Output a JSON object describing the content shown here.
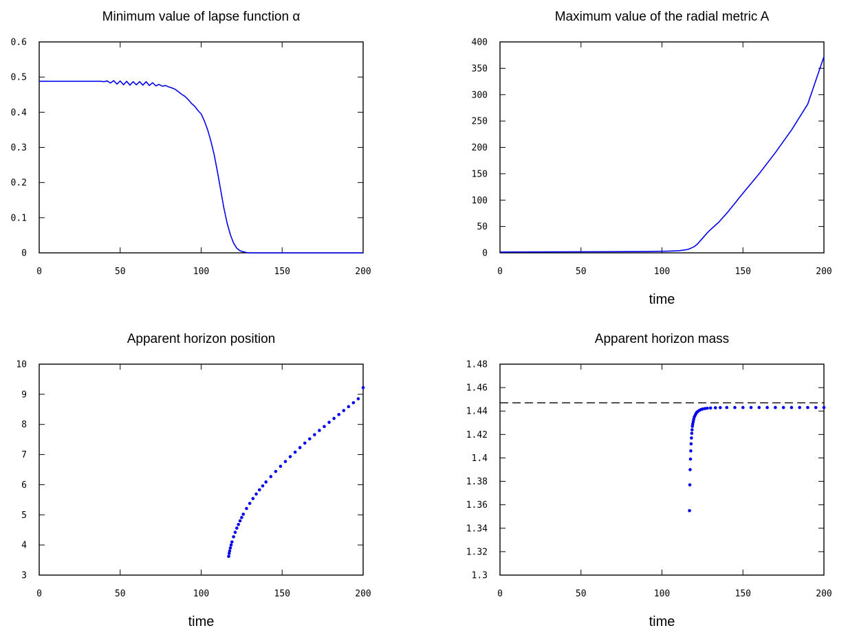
{
  "chart_data": [
    {
      "type": "line",
      "title": "Minimum value of lapse function α",
      "xlabel": "",
      "ylabel": "",
      "xlim": [
        0,
        200
      ],
      "ylim": [
        0,
        0.6
      ],
      "xticks": [
        "0",
        "50",
        "100",
        "150",
        "200"
      ],
      "yticks": [
        "0",
        "0.1",
        "0.2",
        "0.3",
        "0.4",
        "0.5",
        "0.6"
      ],
      "grid": false,
      "series": [
        {
          "color": "#0000ee",
          "x": [
            0,
            20,
            38,
            40,
            42,
            44,
            46,
            48,
            50,
            52,
            54,
            56,
            58,
            60,
            62,
            64,
            66,
            68,
            70,
            72,
            74,
            76,
            78,
            80,
            82,
            84,
            86,
            88,
            90,
            92,
            94,
            96,
            98,
            100,
            102,
            104,
            106,
            108,
            110,
            112,
            114,
            116,
            118,
            120,
            122,
            124,
            126,
            128,
            130,
            135,
            140,
            150,
            200
          ],
          "y": [
            0.488,
            0.488,
            0.488,
            0.487,
            0.489,
            0.483,
            0.49,
            0.48,
            0.489,
            0.478,
            0.488,
            0.477,
            0.487,
            0.478,
            0.487,
            0.477,
            0.487,
            0.476,
            0.484,
            0.475,
            0.479,
            0.474,
            0.476,
            0.472,
            0.469,
            0.465,
            0.458,
            0.451,
            0.445,
            0.436,
            0.425,
            0.417,
            0.405,
            0.395,
            0.375,
            0.35,
            0.318,
            0.28,
            0.232,
            0.18,
            0.128,
            0.085,
            0.052,
            0.028,
            0.013,
            0.006,
            0.003,
            0.001,
            0.0,
            0.0,
            0.0,
            0.0,
            0.0
          ]
        }
      ]
    },
    {
      "type": "line",
      "title": "Maximum value of the radial metric A",
      "xlabel": "time",
      "ylabel": "",
      "xlim": [
        0,
        200
      ],
      "ylim": [
        0,
        400
      ],
      "xticks": [
        "0",
        "50",
        "100",
        "150",
        "200"
      ],
      "yticks": [
        "0",
        "50",
        "100",
        "150",
        "200",
        "250",
        "300",
        "350",
        "400"
      ],
      "grid": false,
      "series": [
        {
          "color": "#0000ee",
          "x": [
            0,
            50,
            90,
            100,
            105,
            110,
            113,
            116,
            118,
            120,
            122,
            124,
            126,
            128,
            130,
            135,
            140,
            145,
            150,
            160,
            170,
            180,
            190,
            200
          ],
          "y": [
            1.5,
            2,
            2.5,
            3,
            3.3,
            4,
            5,
            6.5,
            9,
            12,
            17,
            24,
            31,
            38,
            44,
            58,
            75,
            94,
            113,
            150,
            190,
            233,
            282,
            372
          ]
        }
      ]
    },
    {
      "type": "scatter",
      "title": "Apparent horizon position",
      "xlabel": "time",
      "ylabel": "",
      "xlim": [
        0,
        200
      ],
      "ylim": [
        3,
        10
      ],
      "xticks": [
        "0",
        "50",
        "100",
        "150",
        "200"
      ],
      "yticks": [
        "3",
        "4",
        "5",
        "6",
        "7",
        "8",
        "9",
        "10"
      ],
      "grid": false,
      "series": [
        {
          "color": "#0000ee",
          "x": [
            117,
            117.3,
            117.6,
            118,
            118.5,
            119,
            120,
            121,
            122,
            123,
            124,
            125,
            126,
            128,
            130,
            132,
            134,
            136,
            138,
            140,
            143,
            146,
            149,
            152,
            155,
            158,
            161,
            164,
            167,
            170,
            173,
            176,
            179,
            182,
            185,
            188,
            191,
            194,
            197,
            200
          ],
          "y": [
            3.62,
            3.72,
            3.8,
            3.9,
            4.0,
            4.1,
            4.27,
            4.42,
            4.56,
            4.68,
            4.8,
            4.91,
            5.02,
            5.21,
            5.38,
            5.54,
            5.69,
            5.83,
            5.96,
            6.09,
            6.27,
            6.44,
            6.61,
            6.77,
            6.93,
            7.08,
            7.23,
            7.38,
            7.52,
            7.66,
            7.8,
            7.93,
            8.07,
            8.2,
            8.33,
            8.46,
            8.59,
            8.72,
            8.85,
            9.22
          ]
        }
      ]
    },
    {
      "type": "scatter",
      "title": "Apparent horizon mass",
      "xlabel": "time",
      "ylabel": "",
      "xlim": [
        0,
        200
      ],
      "ylim": [
        1.3,
        1.48
      ],
      "xticks": [
        "0",
        "50",
        "100",
        "150",
        "200"
      ],
      "yticks": [
        "1.3",
        "1.32",
        "1.34",
        "1.36",
        "1.38",
        "1.4",
        "1.42",
        "1.44",
        "1.46",
        "1.48"
      ],
      "grid": false,
      "reference_line": {
        "y": 1.447,
        "style": "dashed",
        "color": "#000000"
      },
      "series": [
        {
          "color": "#0000ee",
          "x": [
            117.0,
            117.2,
            117.4,
            117.6,
            117.8,
            118.0,
            118.2,
            118.4,
            118.6,
            118.8,
            119.0,
            119.3,
            119.6,
            120.0,
            120.5,
            121.0,
            121.5,
            122.0,
            123.0,
            124.0,
            125.0,
            126.5,
            128.0,
            130.0,
            133.0,
            136.0,
            140.0,
            145.0,
            150.0,
            155.0,
            160.0,
            165.0,
            170.0,
            175.0,
            180.0,
            185.0,
            190.0,
            195.0,
            200.0
          ],
          "y": [
            1.355,
            1.377,
            1.39,
            1.399,
            1.406,
            1.412,
            1.417,
            1.421,
            1.424,
            1.427,
            1.429,
            1.431,
            1.433,
            1.435,
            1.4365,
            1.4378,
            1.4388,
            1.4395,
            1.4405,
            1.4412,
            1.4417,
            1.4421,
            1.4424,
            1.4426,
            1.4428,
            1.4429,
            1.443,
            1.443,
            1.443,
            1.443,
            1.443,
            1.443,
            1.443,
            1.443,
            1.443,
            1.443,
            1.443,
            1.443,
            1.443
          ]
        }
      ]
    }
  ]
}
